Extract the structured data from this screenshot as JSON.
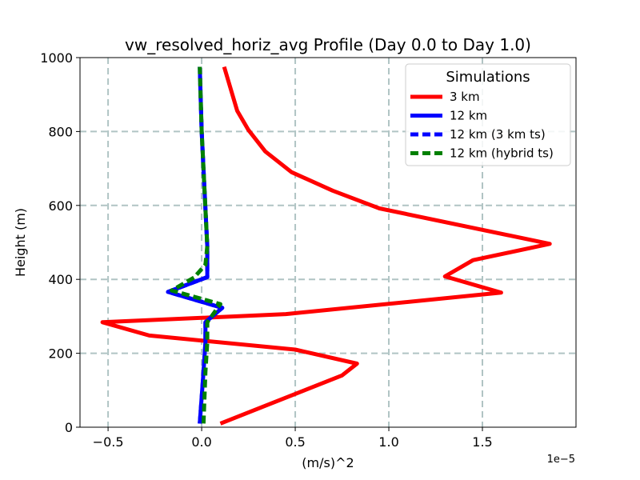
{
  "chart_data": {
    "type": "line",
    "title": "vw_resolved_horiz_avg Profile (Day 0.0 to Day 1.0)",
    "xlabel": "(m/s)^2",
    "ylabel": "Height (m)",
    "x_offset_label": "1e−5",
    "xlim": [
      -0.65,
      2.0
    ],
    "ylim": [
      0,
      1000
    ],
    "xticks": [
      -0.5,
      0.0,
      0.5,
      1.0,
      1.5
    ],
    "xtick_labels": [
      "−0.5",
      "0.0",
      "0.5",
      "1.0",
      "1.5"
    ],
    "yticks": [
      0,
      200,
      400,
      600,
      800,
      1000
    ],
    "ytick_labels": [
      "0",
      "200",
      "400",
      "600",
      "800",
      "1000"
    ],
    "grid": true,
    "legend": {
      "title": "Simulations",
      "placement": "upper-right"
    },
    "series": [
      {
        "name": "3 km",
        "color": "#ff0000",
        "style": "solid",
        "points": [
          [
            0.1,
            10
          ],
          [
            0.75,
            140
          ],
          [
            0.83,
            172
          ],
          [
            0.5,
            210
          ],
          [
            -0.28,
            248
          ],
          [
            -0.53,
            284
          ],
          [
            0.45,
            306
          ],
          [
            1.6,
            364
          ],
          [
            1.3,
            408
          ],
          [
            1.45,
            452
          ],
          [
            1.86,
            496
          ],
          [
            0.95,
            592
          ],
          [
            0.7,
            640
          ],
          [
            0.48,
            690
          ],
          [
            0.34,
            746
          ],
          [
            0.25,
            804
          ],
          [
            0.19,
            856
          ],
          [
            0.12,
            975
          ]
        ]
      },
      {
        "name": "12 km",
        "color": "#0000ff",
        "style": "solid",
        "points": [
          [
            -0.01,
            10
          ],
          [
            0.01,
            150
          ],
          [
            0.02,
            230
          ],
          [
            0.02,
            284
          ],
          [
            0.11,
            323
          ],
          [
            -0.18,
            366
          ],
          [
            0.03,
            406
          ],
          [
            0.03,
            490
          ],
          [
            0.02,
            590
          ],
          [
            0.0,
            800
          ],
          [
            -0.01,
            975
          ]
        ]
      },
      {
        "name": "12 km (3 km ts)",
        "color": "#0000ff",
        "style": "dashed",
        "points": [
          [
            -0.01,
            10
          ],
          [
            0.01,
            150
          ],
          [
            0.02,
            230
          ],
          [
            0.02,
            284
          ],
          [
            0.11,
            323
          ],
          [
            -0.18,
            366
          ],
          [
            0.03,
            406
          ],
          [
            0.03,
            490
          ],
          [
            0.02,
            590
          ],
          [
            0.0,
            800
          ],
          [
            -0.01,
            975
          ]
        ]
      },
      {
        "name": "12 km (hybrid ts)",
        "color": "#008000",
        "style": "dashed",
        "points": [
          [
            0.01,
            10
          ],
          [
            0.02,
            150
          ],
          [
            0.03,
            230
          ],
          [
            0.03,
            284
          ],
          [
            0.1,
            333
          ],
          [
            -0.16,
            370
          ],
          [
            -0.04,
            405
          ],
          [
            0.02,
            440
          ],
          [
            0.03,
            490
          ],
          [
            0.02,
            590
          ],
          [
            0.0,
            800
          ],
          [
            -0.01,
            975
          ]
        ]
      }
    ]
  }
}
